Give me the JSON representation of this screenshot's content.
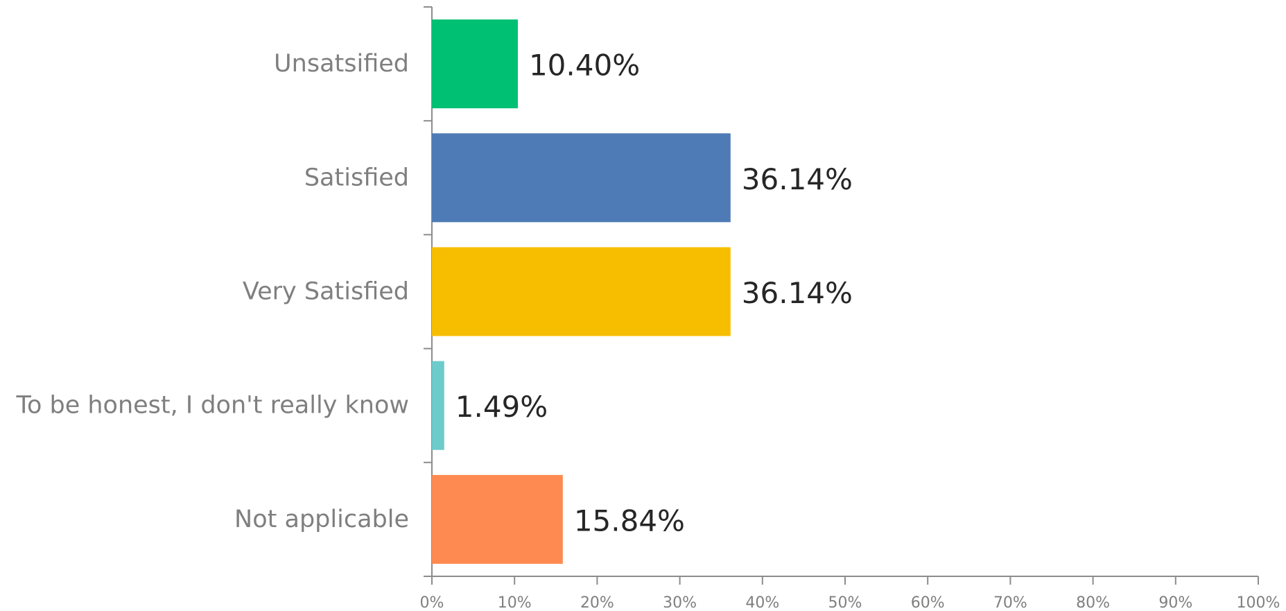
{
  "chart_data": {
    "type": "bar",
    "orientation": "horizontal",
    "title": "",
    "xlabel": "",
    "ylabel": "",
    "categories": [
      "Unsatsified",
      "Satisfied",
      "Very Satisfied",
      "To be honest, I don't really know",
      "Not applicable"
    ],
    "values": [
      10.4,
      36.14,
      36.14,
      1.49,
      15.84
    ],
    "data_labels": [
      "10.40%",
      "36.14%",
      "36.14%",
      "1.49%",
      "15.84%"
    ],
    "colors": [
      "#00c073",
      "#4e7bb5",
      "#f7be00",
      "#6ccbcb",
      "#fe8a51"
    ],
    "xlim": [
      0,
      100
    ],
    "x_ticks": [
      0,
      10,
      20,
      30,
      40,
      50,
      60,
      70,
      80,
      90,
      100
    ],
    "x_tick_labels": [
      "0%",
      "10%",
      "20%",
      "30%",
      "40%",
      "50%",
      "60%",
      "70%",
      "80%",
      "90%",
      "100%"
    ],
    "grid": false,
    "legend": "none"
  }
}
